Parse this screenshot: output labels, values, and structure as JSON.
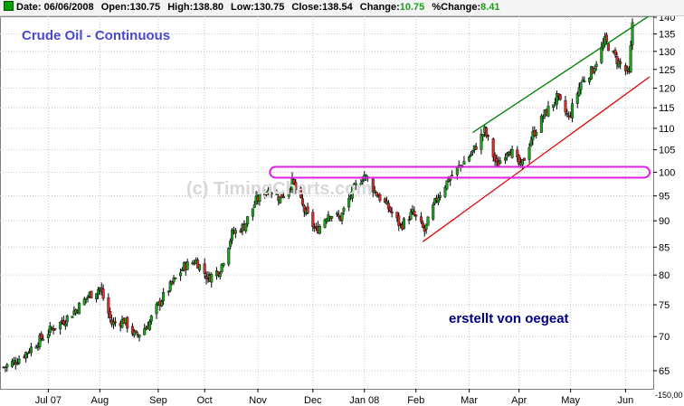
{
  "header": {
    "date_label": "Date:",
    "date": "06/06/2008",
    "open_label": "Open:",
    "open": "130.75",
    "high_label": "High:",
    "high": "138.80",
    "low_label": "Low:",
    "low": "130.75",
    "close_label": "Close:",
    "close": "138.54",
    "change_label": "Change:",
    "change": "10.75",
    "pct_label": "%Change:",
    "pct": "8.41"
  },
  "colors": {
    "up": "#1ea01e",
    "down": "#d03030",
    "upper_trend": "#008000",
    "lower_trend": "#e00000",
    "highlight": "#e020e0",
    "grid": "#c8c8c8",
    "title": "#4a4ad0",
    "note": "#000080"
  },
  "chart_data": {
    "type": "candlestick",
    "title": "Crude Oil - Continuous",
    "watermark": "(c) TimingCharts.com",
    "annotation": "erstellt von oegeat",
    "y_scale": "log",
    "ylim": [
      62,
      142
    ],
    "y_ticks": [
      65,
      70,
      75,
      80,
      85,
      90,
      95,
      100,
      105,
      110,
      115,
      120,
      125,
      130,
      135,
      140
    ],
    "y_bottom_label": "-150,00",
    "x_ticks": [
      "Jul 07",
      "Aug",
      "Sep",
      "Oct",
      "Nov",
      "Dec",
      "Jan 08",
      "Feb",
      "Mar",
      "Apr",
      "May",
      "Jun"
    ],
    "x_range": [
      "2007-06-06",
      "2008-06-16"
    ],
    "closes": [
      {
        "date": "2007-06-06",
        "close": 65.5
      },
      {
        "date": "2007-06-13",
        "close": 66.4
      },
      {
        "date": "2007-06-20",
        "close": 67.8
      },
      {
        "date": "2007-06-27",
        "close": 69.5
      },
      {
        "date": "2007-07-04",
        "close": 71.2
      },
      {
        "date": "2007-07-11",
        "close": 72.5
      },
      {
        "date": "2007-07-18",
        "close": 74.2
      },
      {
        "date": "2007-07-25",
        "close": 76.4
      },
      {
        "date": "2007-08-01",
        "close": 77.8
      },
      {
        "date": "2007-08-08",
        "close": 72.0
      },
      {
        "date": "2007-08-15",
        "close": 72.5
      },
      {
        "date": "2007-08-22",
        "close": 70.0
      },
      {
        "date": "2007-08-29",
        "close": 71.8
      },
      {
        "date": "2007-09-05",
        "close": 75.5
      },
      {
        "date": "2007-09-12",
        "close": 78.5
      },
      {
        "date": "2007-09-19",
        "close": 81.5
      },
      {
        "date": "2007-09-26",
        "close": 82.5
      },
      {
        "date": "2007-10-03",
        "close": 79.5
      },
      {
        "date": "2007-10-10",
        "close": 81.0
      },
      {
        "date": "2007-10-17",
        "close": 87.5
      },
      {
        "date": "2007-10-24",
        "close": 89.0
      },
      {
        "date": "2007-10-31",
        "close": 94.0
      },
      {
        "date": "2007-11-07",
        "close": 96.5
      },
      {
        "date": "2007-11-14",
        "close": 94.5
      },
      {
        "date": "2007-11-21",
        "close": 98.0
      },
      {
        "date": "2007-11-28",
        "close": 92.0
      },
      {
        "date": "2007-12-05",
        "close": 88.0
      },
      {
        "date": "2007-12-12",
        "close": 91.5
      },
      {
        "date": "2007-12-19",
        "close": 90.5
      },
      {
        "date": "2007-12-26",
        "close": 96.0
      },
      {
        "date": "2008-01-02",
        "close": 99.5
      },
      {
        "date": "2008-01-09",
        "close": 95.5
      },
      {
        "date": "2008-01-16",
        "close": 92.5
      },
      {
        "date": "2008-01-23",
        "close": 89.0
      },
      {
        "date": "2008-01-30",
        "close": 91.5
      },
      {
        "date": "2008-02-06",
        "close": 88.0
      },
      {
        "date": "2008-02-13",
        "close": 94.5
      },
      {
        "date": "2008-02-20",
        "close": 98.5
      },
      {
        "date": "2008-02-27",
        "close": 101.5
      },
      {
        "date": "2008-03-05",
        "close": 104.5
      },
      {
        "date": "2008-03-12",
        "close": 109.5
      },
      {
        "date": "2008-03-19",
        "close": 101.5
      },
      {
        "date": "2008-03-26",
        "close": 105.5
      },
      {
        "date": "2008-04-02",
        "close": 101.0
      },
      {
        "date": "2008-04-09",
        "close": 108.5
      },
      {
        "date": "2008-04-16",
        "close": 113.5
      },
      {
        "date": "2008-04-23",
        "close": 117.5
      },
      {
        "date": "2008-04-30",
        "close": 112.5
      },
      {
        "date": "2008-05-07",
        "close": 121.5
      },
      {
        "date": "2008-05-14",
        "close": 125.0
      },
      {
        "date": "2008-05-21",
        "close": 133.0
      },
      {
        "date": "2008-05-28",
        "close": 127.5
      },
      {
        "date": "2008-06-04",
        "close": 123.5
      },
      {
        "date": "2008-06-06",
        "close": 138.5
      }
    ],
    "trendlines": [
      {
        "name": "upper",
        "from": {
          "date": "2008-03-05",
          "value": 109
        },
        "to": {
          "date": "2008-06-16",
          "value": 140.5
        }
      },
      {
        "name": "lower",
        "from": {
          "date": "2008-02-05",
          "value": 86
        },
        "to": {
          "date": "2008-06-16",
          "value": 123
        }
      }
    ],
    "highlight_band": {
      "from_date": "2007-11-08",
      "to_date": "2008-06-16",
      "value": 100
    }
  }
}
